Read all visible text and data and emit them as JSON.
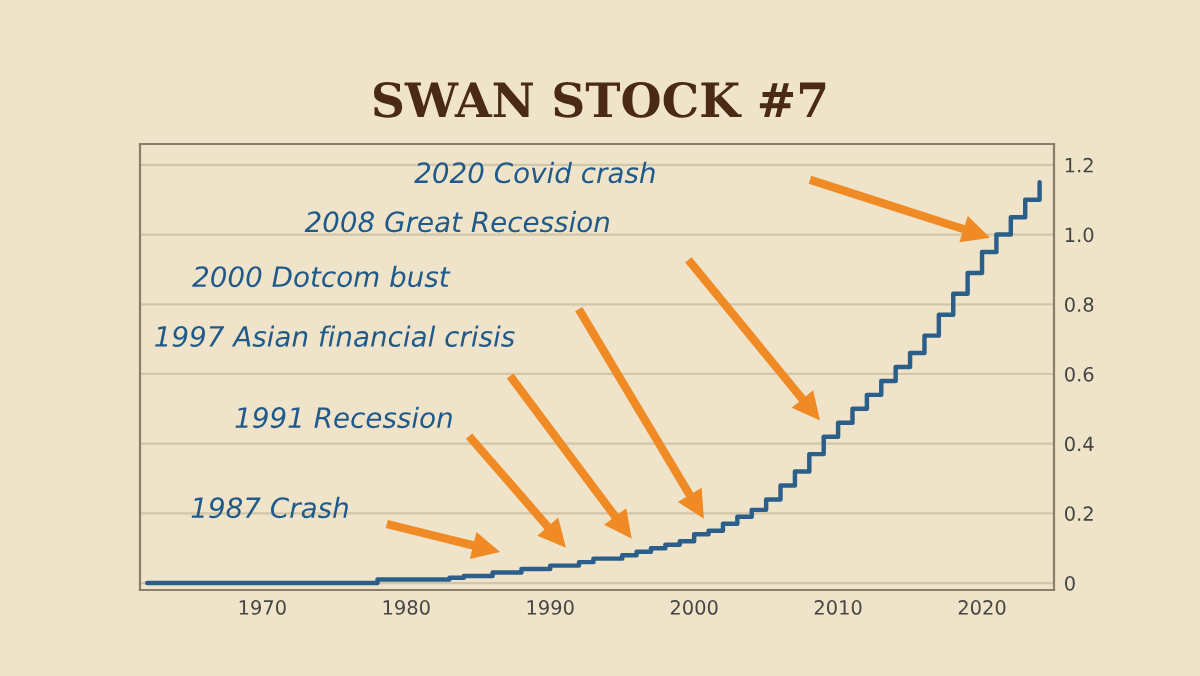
{
  "chart_data": {
    "type": "step",
    "title": "SWAN STOCK #7",
    "x": [
      1962,
      1963,
      1964,
      1965,
      1966,
      1967,
      1968,
      1969,
      1970,
      1971,
      1972,
      1973,
      1974,
      1975,
      1976,
      1977,
      1978,
      1979,
      1980,
      1981,
      1982,
      1983,
      1984,
      1985,
      1986,
      1987,
      1988,
      1989,
      1990,
      1991,
      1992,
      1993,
      1994,
      1995,
      1996,
      1997,
      1998,
      1999,
      2000,
      2001,
      2002,
      2003,
      2004,
      2005,
      2006,
      2007,
      2008,
      2009,
      2010,
      2011,
      2012,
      2013,
      2014,
      2015,
      2016,
      2017,
      2018,
      2019,
      2020,
      2021,
      2022,
      2023,
      2024
    ],
    "series": [
      {
        "color": "#2b5f8a",
        "values": [
          0,
          0,
          0,
          0,
          0,
          0,
          0,
          0,
          0,
          0,
          0,
          0,
          0,
          0,
          0,
          0,
          0.01,
          0.01,
          0.01,
          0.01,
          0.01,
          0.015,
          0.02,
          0.02,
          0.03,
          0.03,
          0.04,
          0.04,
          0.05,
          0.05,
          0.06,
          0.07,
          0.07,
          0.08,
          0.09,
          0.1,
          0.11,
          0.12,
          0.14,
          0.15,
          0.17,
          0.19,
          0.21,
          0.24,
          0.28,
          0.32,
          0.37,
          0.42,
          0.46,
          0.5,
          0.54,
          0.58,
          0.62,
          0.66,
          0.71,
          0.77,
          0.83,
          0.89,
          0.95,
          1.0,
          1.05,
          1.1,
          1.15
        ]
      }
    ],
    "xlim": [
      1961.5,
      2025
    ],
    "ylim": [
      -0.02,
      1.26
    ],
    "xticks": [
      1970,
      1980,
      1990,
      2000,
      2010,
      2020
    ],
    "yticks": [
      0,
      0.2,
      0.4,
      0.6,
      0.8,
      {
        "value": 1,
        "label": "1.0"
      },
      1.2
    ],
    "grid": "y",
    "legend": false,
    "annotations": [
      "2020 Covid crash",
      "2008 Great Recession",
      "2000 Dotcom bust",
      "1997 Asian financial crisis",
      "1991 Recession",
      "1987 Crash"
    ]
  }
}
